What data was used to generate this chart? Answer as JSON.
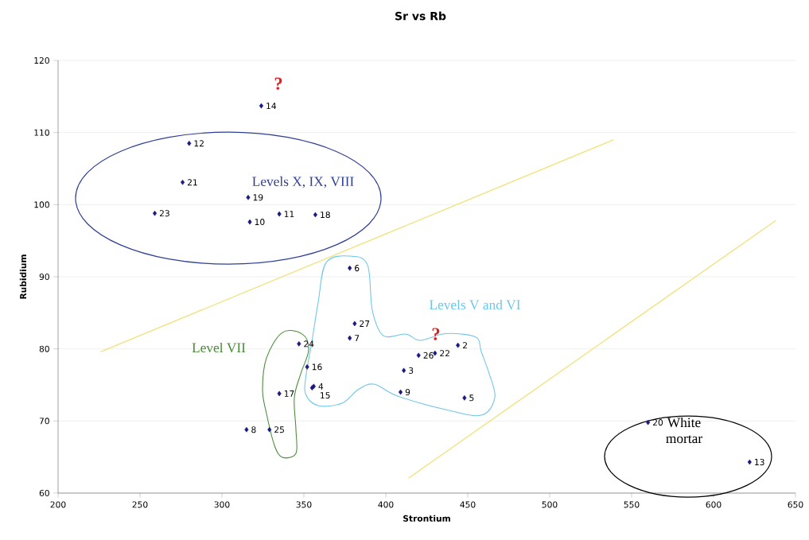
{
  "chart_data": {
    "type": "scatter",
    "title": "Sr vs Rb",
    "xlabel": "Strontium",
    "ylabel": "Rubidium",
    "xlim": [
      200,
      650
    ],
    "ylim": [
      60,
      120
    ],
    "xticks": [
      200,
      250,
      300,
      350,
      400,
      450,
      500,
      550,
      600,
      650
    ],
    "yticks": [
      60,
      70,
      80,
      90,
      100,
      110,
      120
    ],
    "grid": "y",
    "series": [
      {
        "color": "#1a1a80",
        "marker": "diamond",
        "x": [
          444,
          411,
          356,
          448,
          378,
          378,
          315,
          409,
          317,
          335,
          280,
          622,
          324,
          355,
          352,
          335,
          357,
          316,
          560,
          276,
          430,
          259,
          347,
          329,
          420,
          381
        ],
        "values": [
          80.5,
          77.0,
          74.8,
          73.2,
          91.2,
          81.5,
          68.8,
          74.0,
          97.6,
          98.7,
          108.5,
          64.3,
          113.7,
          74.6,
          77.5,
          73.8,
          98.6,
          101.0,
          69.8,
          103.1,
          79.4,
          98.8,
          80.7,
          68.8,
          79.1,
          83.5
        ]
      },
      {
        "type": "line",
        "color": "#f0e27a",
        "x": [
          226,
          539
        ],
        "values": [
          79.6,
          109.0
        ]
      },
      {
        "type": "line",
        "color": "#f0e27a",
        "x": [
          414,
          638
        ],
        "values": [
          62.1,
          97.8
        ]
      }
    ],
    "annotations": [
      "Levels X, IX, VIII",
      "Levels V and VI",
      "Level VII",
      "White mortar",
      "?",
      "?",
      {
        "text": "2",
        "x": 444,
        "y": 80.5
      },
      {
        "text": "3",
        "x": 411,
        "y": 77.0
      },
      {
        "text": "4",
        "x": 356,
        "y": 74.8
      },
      {
        "text": "5",
        "x": 448,
        "y": 73.2
      },
      {
        "text": "6",
        "x": 378,
        "y": 91.2
      },
      {
        "text": "7",
        "x": 378,
        "y": 81.5
      },
      {
        "text": "8",
        "x": 315,
        "y": 68.8
      },
      {
        "text": "9",
        "x": 409,
        "y": 74.0
      },
      {
        "text": "10",
        "x": 317,
        "y": 97.6
      },
      {
        "text": "11",
        "x": 335,
        "y": 98.7
      },
      {
        "text": "12",
        "x": 280,
        "y": 108.5
      },
      {
        "text": "13",
        "x": 622,
        "y": 64.3
      },
      {
        "text": "14",
        "x": 324,
        "y": 113.7
      },
      {
        "text": "15",
        "x": 355,
        "y": 74.6
      },
      {
        "text": "16",
        "x": 352,
        "y": 77.5
      },
      {
        "text": "17",
        "x": 335,
        "y": 73.8
      },
      {
        "text": "18",
        "x": 357,
        "y": 98.6
      },
      {
        "text": "19",
        "x": 316,
        "y": 101.0
      },
      {
        "text": "20",
        "x": 560,
        "y": 69.8
      },
      {
        "text": "21",
        "x": 276,
        "y": 103.1
      },
      {
        "text": "22",
        "x": 430,
        "y": 79.4
      },
      {
        "text": "23",
        "x": 259,
        "y": 98.8
      },
      {
        "text": "24",
        "x": 347,
        "y": 80.7
      },
      {
        "text": "25",
        "x": 329,
        "y": 68.8
      },
      {
        "text": "26",
        "x": 420,
        "y": 79.1
      },
      {
        "text": "27",
        "x": 381,
        "y": 83.5
      }
    ]
  }
}
